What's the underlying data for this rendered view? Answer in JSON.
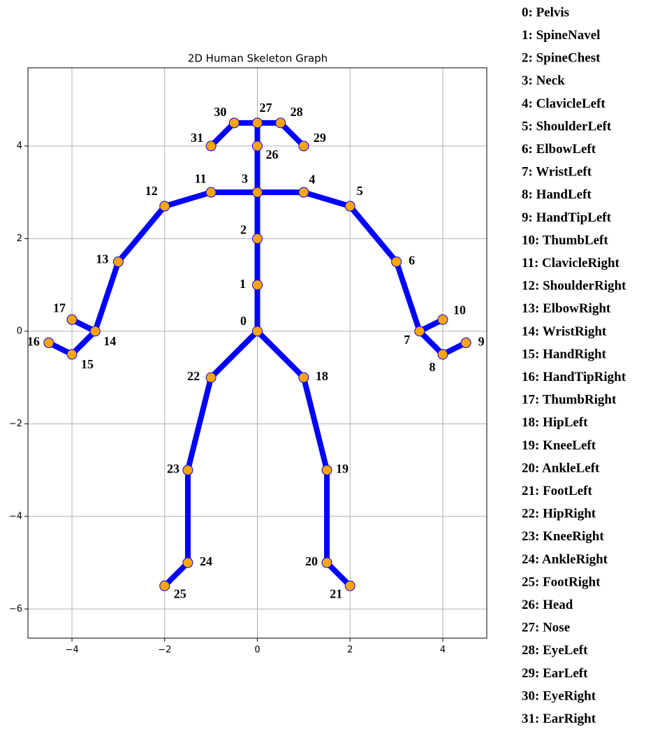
{
  "chart_data": {
    "type": "graph",
    "title": "2D Human Skeleton Graph",
    "x": [
      0,
      0,
      0,
      0,
      1,
      2,
      3,
      3.5,
      4,
      4.5,
      4,
      -1,
      -2,
      -3,
      -3.5,
      -4,
      -4.5,
      -4,
      1,
      1.5,
      1.5,
      2,
      -1,
      -1.5,
      -1.5,
      -2,
      0,
      0,
      0.5,
      1,
      -0.5,
      -1
    ],
    "values": [
      0,
      1,
      2,
      3,
      3,
      2.7,
      1.5,
      0,
      -0.5,
      -0.25,
      0.25,
      3,
      2.7,
      1.5,
      0,
      -0.5,
      -0.25,
      0.25,
      -1,
      -3,
      -5,
      -5.5,
      -1,
      -3,
      -5,
      -5.5,
      4,
      4.5,
      4.5,
      4,
      4.5,
      4
    ],
    "point_labels": [
      "0",
      "1",
      "2",
      "3",
      "4",
      "5",
      "6",
      "7",
      "8",
      "9",
      "10",
      "11",
      "12",
      "13",
      "14",
      "15",
      "16",
      "17",
      "18",
      "19",
      "20",
      "21",
      "22",
      "23",
      "24",
      "25",
      "26",
      "27",
      "28",
      "29",
      "30",
      "31"
    ],
    "edges": [
      [
        0,
        1
      ],
      [
        1,
        2
      ],
      [
        2,
        3
      ],
      [
        3,
        4
      ],
      [
        4,
        5
      ],
      [
        5,
        6
      ],
      [
        6,
        7
      ],
      [
        7,
        8
      ],
      [
        8,
        9
      ],
      [
        7,
        10
      ],
      [
        3,
        11
      ],
      [
        11,
        12
      ],
      [
        12,
        13
      ],
      [
        13,
        14
      ],
      [
        14,
        15
      ],
      [
        15,
        16
      ],
      [
        14,
        17
      ],
      [
        0,
        18
      ],
      [
        18,
        19
      ],
      [
        19,
        20
      ],
      [
        20,
        21
      ],
      [
        0,
        22
      ],
      [
        22,
        23
      ],
      [
        23,
        24
      ],
      [
        24,
        25
      ],
      [
        3,
        26
      ],
      [
        26,
        27
      ],
      [
        27,
        28
      ],
      [
        28,
        29
      ],
      [
        27,
        30
      ],
      [
        30,
        31
      ]
    ],
    "edge_color": "#0000ff",
    "node_color": "#ffa500",
    "joint_names": [
      "0: Pelvis",
      "1: SpineNavel",
      "2: SpineChest",
      "3: Neck",
      "4: ClavicleLeft",
      "5: ShoulderLeft",
      "6: ElbowLeft",
      "7: WristLeft",
      "8: HandLeft",
      "9: HandTipLeft",
      "10: ThumbLeft",
      "11: ClavicleRight",
      "12: ShoulderRight",
      "13: ElbowRight",
      "14: WristRight",
      "15: HandRight",
      "16: HandTipRight",
      "17: ThumbRight",
      "18: HipLeft",
      "19: KneeLeft",
      "20: AnkleLeft",
      "21: FootLeft",
      "22: HipRight",
      "23: KneeRight",
      "24: AnkleRight",
      "25: FootRight",
      "26: Head",
      "27: Nose",
      "28: EyeLeft",
      "29: EarLeft",
      "30: EyeRight",
      "31: EarRight"
    ],
    "xlim": [
      -4.95,
      4.95
    ],
    "ylim": [
      -6.63,
      5.69
    ],
    "xticks": [
      {
        "value": -4,
        "label": "−4"
      },
      {
        "value": -2,
        "label": "−2"
      },
      0,
      2,
      4
    ],
    "yticks": [
      {
        "value": -6,
        "label": "−6"
      },
      {
        "value": -4,
        "label": "−4"
      },
      {
        "value": -2,
        "label": "−2"
      },
      0,
      2,
      4
    ],
    "grid": true
  }
}
